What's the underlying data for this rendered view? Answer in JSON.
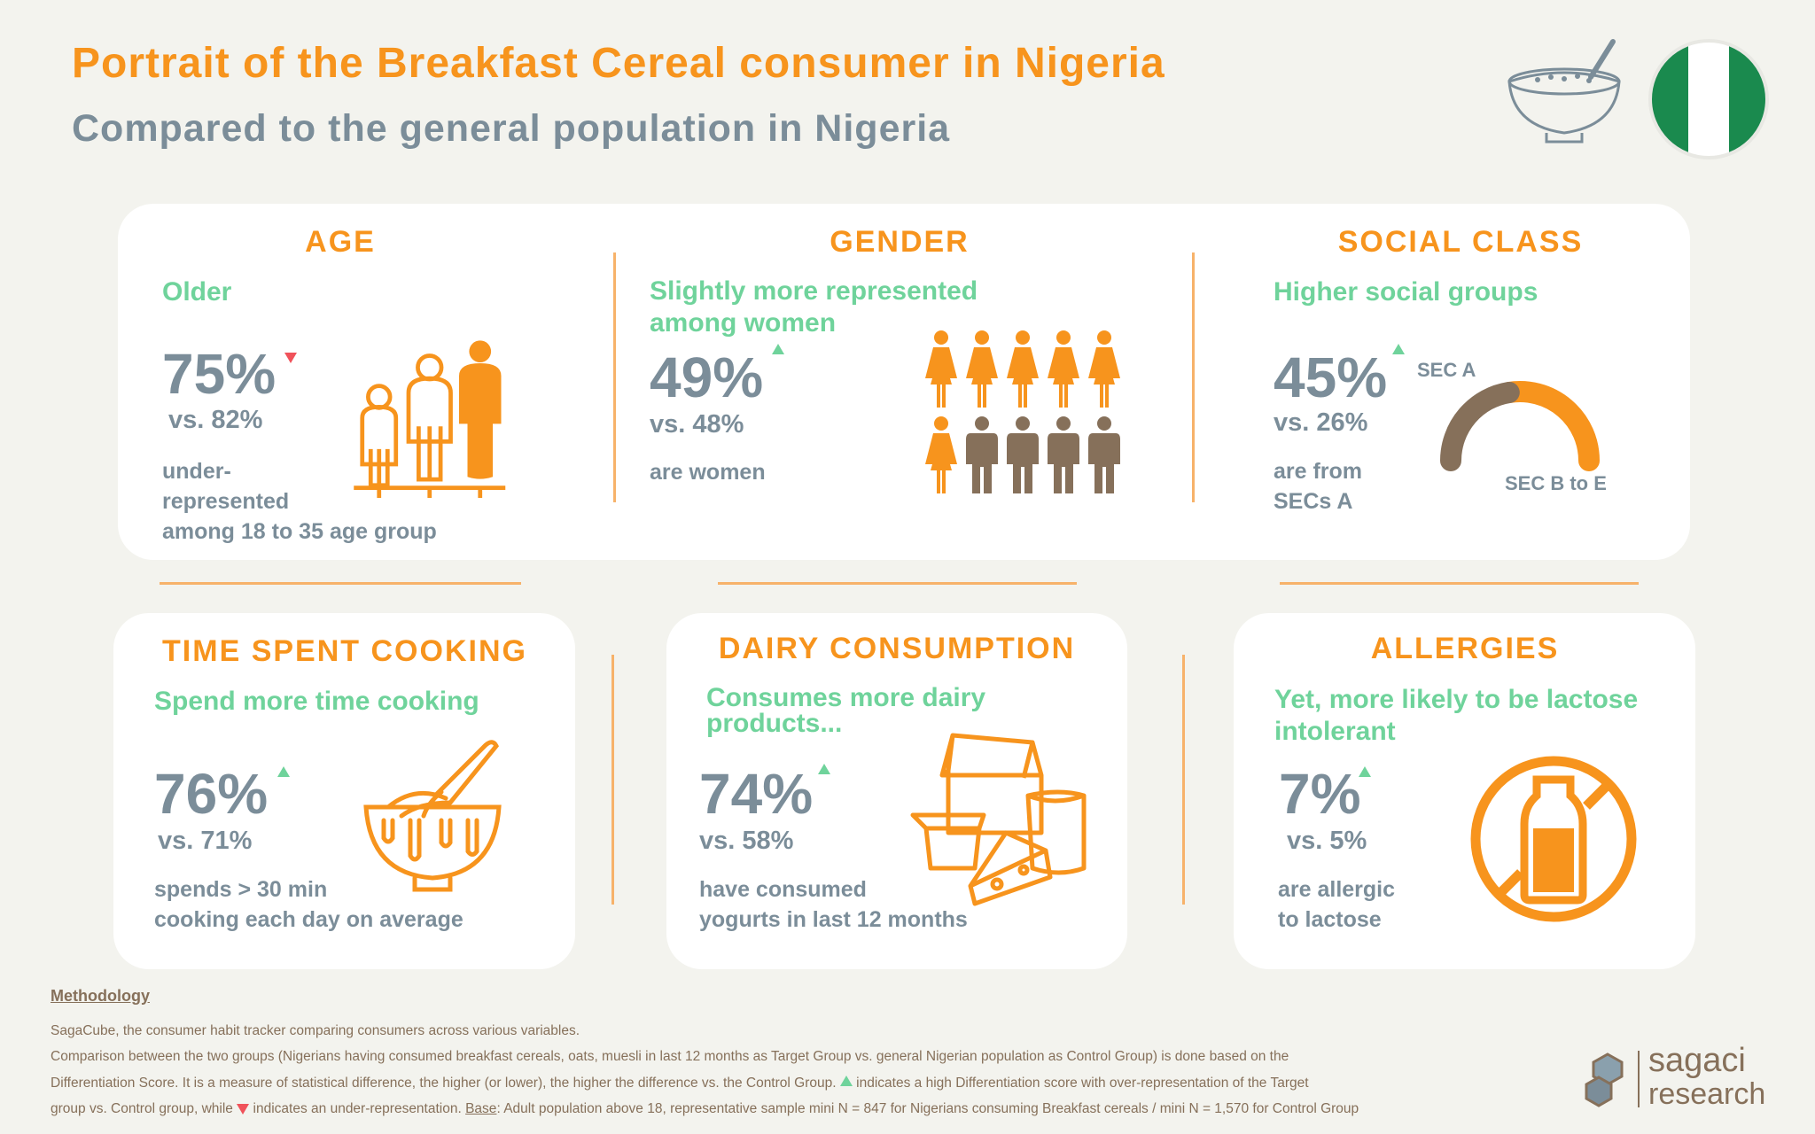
{
  "header": {
    "title": "Portrait of the Breakfast Cereal consumer in Nigeria",
    "subtitle": "Compared to the general population in Nigeria"
  },
  "colors": {
    "orange": "#f7941d",
    "green": "#6fd39b",
    "grey": "#7b8d99",
    "brown": "#86705a",
    "red": "#f0525a",
    "flag_green": "#1a8a4e"
  },
  "sections": {
    "age": {
      "heading": "AGE",
      "summary": "Older",
      "value": "75%",
      "trend": "down",
      "comparison": "vs. 82%",
      "description": [
        "under-",
        "represented",
        "among 18 to 35 age group"
      ],
      "icon": "family-height-icon"
    },
    "gender": {
      "heading": "GENDER",
      "summary": [
        "Slightly more represented",
        "among women"
      ],
      "value": "49%",
      "trend": "up",
      "comparison": "vs. 48%",
      "description": [
        "are women"
      ],
      "icon": "people-grid-icon",
      "women_count": 6,
      "men_count": 4
    },
    "social_class": {
      "heading": "SOCIAL CLASS",
      "summary": "Higher social groups",
      "value": "45%",
      "trend": "up",
      "comparison": "vs. 26%",
      "description": [
        "are from",
        "SECs A"
      ],
      "gauge": {
        "label_a": "SEC A",
        "label_b": "SEC B to E",
        "share_a": 0.45
      }
    },
    "cooking": {
      "heading": "TIME SPENT COOKING",
      "summary": "Spend more time cooking",
      "value": "76%",
      "trend": "up",
      "comparison": "vs. 71%",
      "description": [
        "spends > 30 min",
        "cooking each day on average"
      ],
      "icon": "whisk-bowl-icon"
    },
    "dairy": {
      "heading": "DAIRY CONSUMPTION",
      "summary": [
        "Consumes more dairy",
        "products..."
      ],
      "value": "74%",
      "trend": "up",
      "comparison": "vs. 58%",
      "description": [
        "have consumed",
        "yogurts in last 12 months"
      ],
      "icon": "dairy-products-icon"
    },
    "allergies": {
      "heading": "ALLERGIES",
      "summary": [
        "Yet, more likely to be lactose",
        "intolerant"
      ],
      "value": "7%",
      "trend": "up",
      "comparison": "vs. 5%",
      "description": [
        "are allergic",
        "to lactose"
      ],
      "icon": "no-milk-icon"
    }
  },
  "methodology": {
    "title": "Methodology",
    "lines": [
      "SagaCube, the consumer habit tracker comparing consumers across various variables.",
      "Comparison between the two groups (Nigerians having consumed breakfast cereals, oats, muesli in last 12 months as Target Group vs. general Nigerian population as Control Group) is done based on the",
      "Differentiation Score. It is a measure of statistical difference, the higher (or lower), the higher the difference vs. the Control Group.",
      "indicates a high Differentiation score with over-representation of the Target",
      "group vs. Control group, while",
      "indicates an under-representation.",
      "Base",
      ": Adult population above 18, representative sample mini N = 847 for Nigerians consuming Breakfast cereals / mini N = 1,570 for Control Group"
    ]
  },
  "logo": {
    "line1": "sagaci",
    "line2": "research"
  }
}
